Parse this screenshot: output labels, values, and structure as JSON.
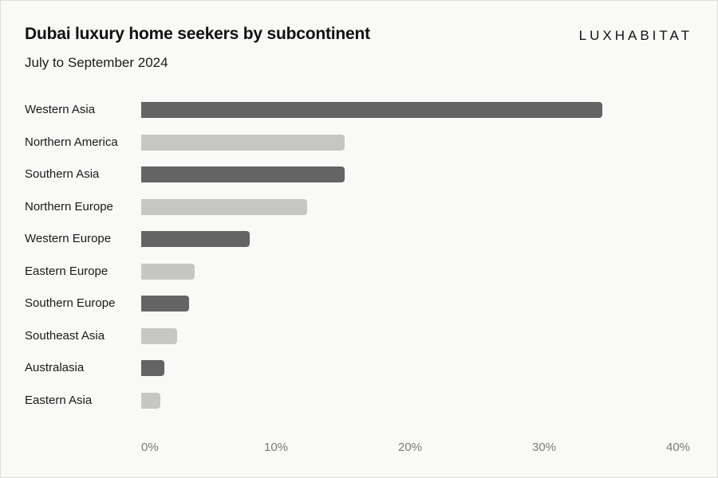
{
  "header": {
    "title": "Dubai luxury home seekers by subcontinent",
    "subtitle": "July to September 2024",
    "brand": "LUXHABITAT"
  },
  "colors": {
    "dark_bar": "#646464",
    "light_bar": "#c6c6c4",
    "background": "#f9f9f7",
    "tick_text": "#7a7a7a"
  },
  "axis": {
    "ticks": [
      "0%",
      "10%",
      "20%",
      "30%",
      "40%"
    ]
  },
  "chart_data": {
    "type": "bar",
    "orientation": "horizontal",
    "title": "Dubai luxury home seekers by subcontinent",
    "subtitle": "July to September 2024",
    "xlabel": "",
    "ylabel": "",
    "categories": [
      "Western Asia",
      "Northern America",
      "Southern Asia",
      "Northern Europe",
      "Western Europe",
      "Eastern Europe",
      "Southern Europe",
      "Southeast Asia",
      "Australasia",
      "Eastern Asia"
    ],
    "values": [
      34.4,
      15.2,
      15.2,
      12.4,
      8.1,
      4.0,
      3.6,
      2.7,
      1.7,
      1.4
    ],
    "unit": "%",
    "xlim": [
      0,
      40
    ],
    "xticks": [
      "0%",
      "10%",
      "20%",
      "30%",
      "40%"
    ],
    "grid": false,
    "legend": null,
    "bar_colors": [
      "#646464",
      "#c6c6c4",
      "#646464",
      "#c6c6c4",
      "#646464",
      "#c6c6c4",
      "#646464",
      "#c6c6c4",
      "#646464",
      "#c6c6c4"
    ]
  }
}
